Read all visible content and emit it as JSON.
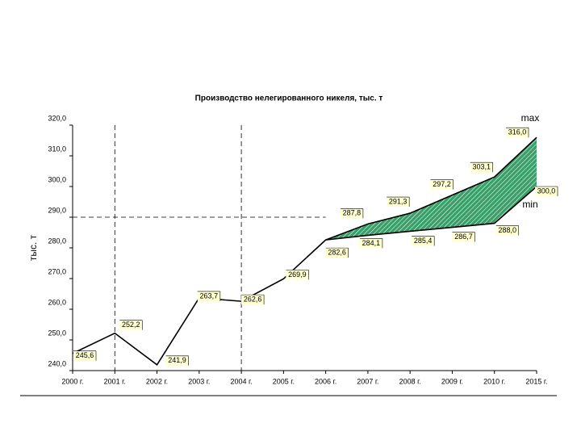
{
  "chart_data": {
    "type": "line",
    "title": "Производство нелегированного никеля, тыс. т",
    "y_label": "тыс. т",
    "categories": [
      "2000 г.",
      "2001 г.",
      "2002 г.",
      "2003 г.",
      "2004 г.",
      "2005 г.",
      "2006 г.",
      "2007 г.",
      "2008 г.",
      "2009 г.",
      "2010 г.",
      "2015 г."
    ],
    "series": [
      {
        "color": "#000000",
        "values": [
          245.6,
          252.2,
          241.9,
          263.7,
          262.6,
          269.9,
          282.6,
          null,
          null,
          null,
          null,
          null
        ],
        "value_labels": [
          "245,6",
          "252,2",
          "241,9",
          "263,7",
          "262,6",
          "269,9",
          "282,6",
          null,
          null,
          null,
          null,
          null
        ]
      },
      {
        "color": "#000000",
        "values": [
          null,
          null,
          null,
          null,
          null,
          null,
          282.6,
          287.8,
          291.3,
          297.2,
          303.1,
          316.0
        ],
        "value_labels": [
          null,
          null,
          null,
          null,
          null,
          null,
          null,
          "287,8",
          "291,3",
          "297,2",
          "303,1",
          "316,0"
        ]
      },
      {
        "color": "#000000",
        "values": [
          null,
          null,
          null,
          null,
          null,
          null,
          282.6,
          284.1,
          285.4,
          286.7,
          288.0,
          300.0
        ],
        "value_labels": [
          null,
          null,
          null,
          null,
          null,
          null,
          null,
          "284,1",
          "285,4",
          "286,7",
          "288,0",
          "300,0"
        ]
      }
    ],
    "band_color": "#2e8b57",
    "annotations": [
      "max",
      "min"
    ],
    "ylim": [
      240,
      320
    ],
    "yticks": [
      {
        "value": 240,
        "label": "240,0"
      },
      {
        "value": 250,
        "label": "250,0"
      },
      {
        "value": 260,
        "label": "260,0"
      },
      {
        "value": 270,
        "label": "270,0"
      },
      {
        "value": 280,
        "label": "280,0"
      },
      {
        "value": 290,
        "label": "290,0"
      },
      {
        "value": 300,
        "label": "300,0"
      },
      {
        "value": 310,
        "label": "310,0"
      },
      {
        "value": 320,
        "label": "320,0"
      }
    ],
    "grid": false
  }
}
